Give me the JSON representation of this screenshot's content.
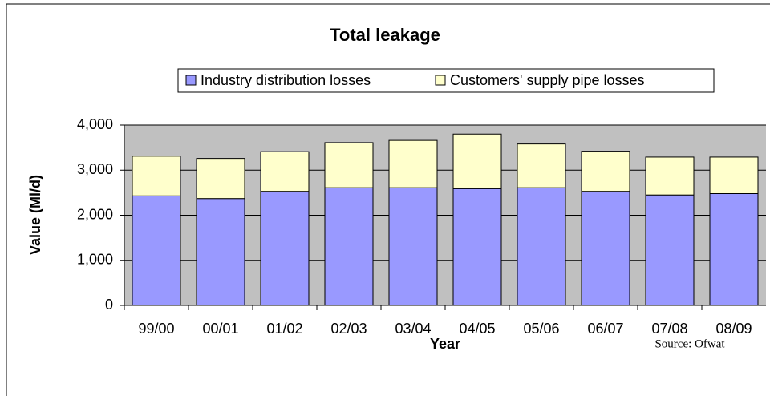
{
  "chart_data": {
    "type": "stacked_bar",
    "title": "Total leakage",
    "x_label": "Year",
    "y_label": "Value (Ml/d)",
    "source": "Source: Ofwat",
    "categories": [
      "99/00",
      "00/01",
      "01/02",
      "02/03",
      "03/04",
      "04/05",
      "05/06",
      "06/07",
      "07/08",
      "08/09"
    ],
    "series": [
      {
        "name": "Industry distribution losses",
        "color": "#9999ff",
        "values": [
          2430,
          2370,
          2530,
          2610,
          2610,
          2590,
          2610,
          2530,
          2450,
          2480
        ]
      },
      {
        "name": "Customers' supply pipe losses",
        "color": "#ffffcc",
        "values": [
          880,
          890,
          880,
          1000,
          1050,
          1210,
          970,
          890,
          840,
          810
        ]
      }
    ],
    "ylim": [
      0,
      4000
    ],
    "yticks": [
      0,
      {
        "value": 1000,
        "label": "1,000"
      },
      {
        "value": 2000,
        "label": "2,000"
      },
      {
        "value": 3000,
        "label": "3,000"
      },
      {
        "value": 4000,
        "label": "4,000"
      }
    ],
    "grid": true,
    "legend": "top",
    "plot_background": "#c0c0c0"
  }
}
